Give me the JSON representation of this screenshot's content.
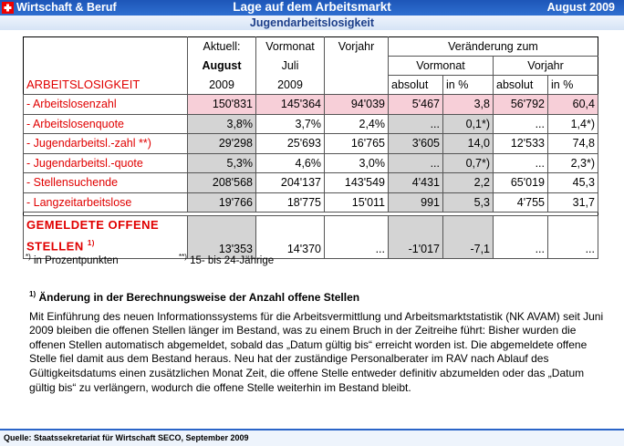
{
  "header": {
    "section": "Wirtschaft & Beruf",
    "title": "Lage auf dem Arbeitsmarkt",
    "date": "August 2009",
    "subtitle": "Jugendarbeitslosigkeit"
  },
  "table": {
    "head": {
      "aktuell": [
        "Aktuell:",
        "August",
        "2009"
      ],
      "vormonat": [
        "Vormonat",
        "Juli",
        "2009"
      ],
      "vorjahr": "Vorjahr",
      "change": "Veränderung zum",
      "change_vormonat": "Vormonat",
      "change_vorjahr": "Vorjahr",
      "sub": [
        "absolut",
        "in %",
        "absolut",
        "in %"
      ],
      "section": "ARBEITSLOSIGKEIT"
    },
    "rows": [
      {
        "label": "- Arbeitslosenzahl",
        "cells": [
          "150'831",
          "145'364",
          "94'039",
          "5'467",
          "3,8",
          "56'792",
          "60,4"
        ]
      },
      {
        "label": "- Arbeitslosenquote",
        "cells": [
          "3,8%",
          "3,7%",
          "2,4%",
          "...",
          "0,1*)",
          "...",
          "1,4*)"
        ]
      },
      {
        "label": "- Jugendarbeitsl.-zahl **)",
        "cells": [
          "29'298",
          "25'693",
          "16'765",
          "3'605",
          "14,0",
          "12'533",
          "74,8"
        ]
      },
      {
        "label": "- Jugendarbeitsl.-quote",
        "cells": [
          "5,3%",
          "4,6%",
          "3,0%",
          "...",
          "0,7*)",
          "...",
          "2,3*)"
        ]
      },
      {
        "label": "- Stellensuchende",
        "cells": [
          "208'568",
          "204'137",
          "143'549",
          "4'431",
          "2,2",
          "65'019",
          "45,3"
        ]
      },
      {
        "label": "- Langzeitarbeitslose",
        "cells": [
          "19'766",
          "18'775",
          "15'011",
          "991",
          "5,3",
          "4'755",
          "31,7"
        ]
      }
    ],
    "total": {
      "label": "GEMELDETE OFFENE STELLEN",
      "mark": "1)",
      "cells": [
        "13'353",
        "14'370",
        "...",
        "-1'017",
        "-7,1",
        "...",
        "..."
      ]
    }
  },
  "footnotes": [
    {
      "mark": "*)",
      "text": "in Prozentpunkten"
    },
    {
      "mark": "**)",
      "text": "15- bis 24-Jährige"
    }
  ],
  "note": {
    "mark": "1)",
    "heading": "Änderung in der Berechnungsweise der Anzahl offene Stellen",
    "text": "Mit Einführung des neuen Informationssystems für die Arbeitsvermittlung und Arbeitsmarktstatistik (NK AVAM) seit Juni 2009 bleiben die offenen Stellen länger im Bestand, was zu einem Bruch in der Zeitreihe führt: Bisher wurden die offenen Stellen automatisch abgemeldet, sobald das „Datum gültig bis“ erreicht worden ist. Die abgemeldete offene Stelle fiel damit aus dem Bestand heraus. Neu hat der zuständige Personalberater im RAV nach Ablauf des Gültigkeitsdatums einen zusätzlichen Monat Zeit, die offene Stelle entweder definitiv abzumelden oder das „Datum gültig bis“ zu verlängern, wodurch die offene Stelle weiterhin im Bestand bleibt."
  },
  "source": "Quelle: Staatssekretariat für Wirtschaft SECO, September 2009"
}
